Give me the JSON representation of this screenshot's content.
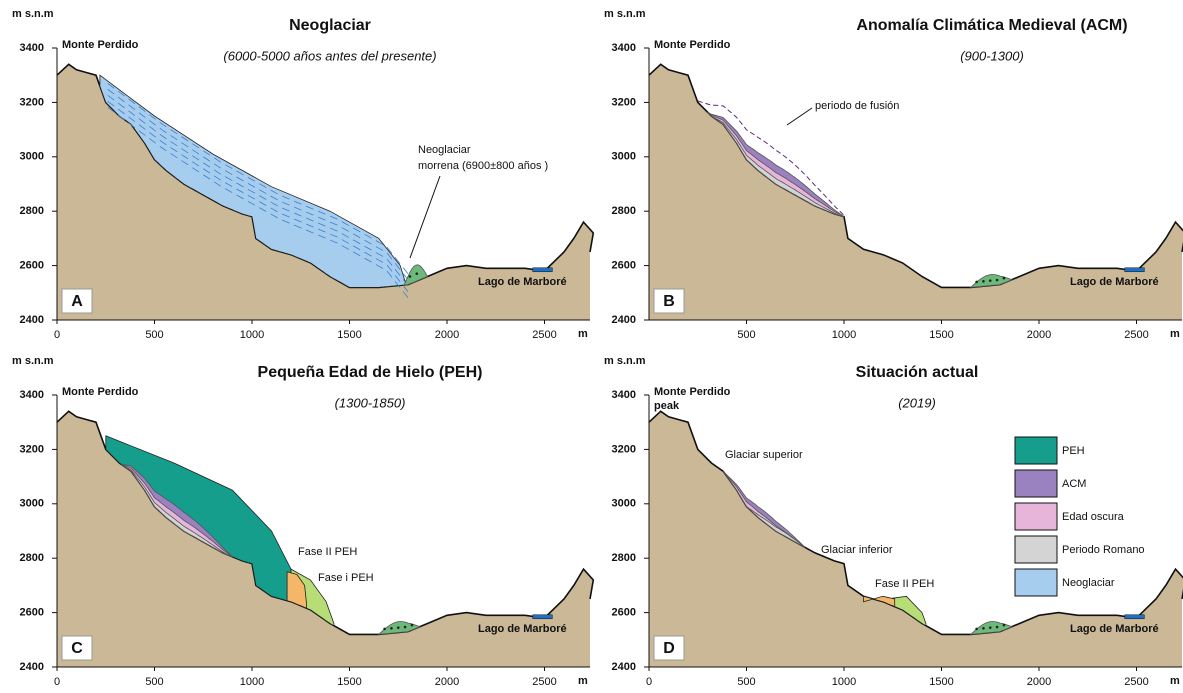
{
  "panels": [
    {
      "unit": "m s.n.m",
      "title": "Neoglaciar",
      "subtitle": "(6000-5000  años antes del presente)",
      "peak": [
        "Monte Perdido"
      ],
      "lake": "Lago de Marboré",
      "letter": "A",
      "x_unit": "m",
      "yticks": [
        2400,
        2600,
        2800,
        3000,
        3200,
        3400
      ],
      "xticks": [
        0,
        500,
        1000,
        1500,
        2000,
        2500
      ],
      "labels": [
        "Neoglaciar",
        "morrena (6900±800 años )"
      ]
    },
    {
      "unit": "m s.n.m",
      "title": "Anomalía Climática Medieval (ACM)",
      "subtitle": "(900-1300)",
      "peak": [
        "Monte Perdido"
      ],
      "lake": "Lago de Marboré",
      "letter": "B",
      "x_unit": "m",
      "yticks": [
        2400,
        2600,
        2800,
        3000,
        3200,
        3400
      ],
      "xticks": [
        500,
        1000,
        1500,
        2000,
        2500
      ],
      "labels": [
        "periodo de fusión"
      ]
    },
    {
      "unit": "m s.n.m",
      "title": "Pequeña Edad de Hielo (PEH)",
      "subtitle": "(1300-1850)",
      "peak": [
        "Monte Perdido"
      ],
      "lake": "Lago de Marboré",
      "letter": "C",
      "x_unit": "m",
      "yticks": [
        2400,
        2600,
        2800,
        3000,
        3200,
        3400
      ],
      "xticks": [
        0,
        500,
        1000,
        1500,
        2000,
        2500
      ],
      "labels": [
        "Fase II PEH",
        "Fase i PEH"
      ]
    },
    {
      "unit": "m s.n.m",
      "title": "Situación actual",
      "subtitle": "(2019)",
      "peak": [
        "Monte Perdido",
        "peak"
      ],
      "lake": "Lago de Marboré",
      "letter": "D",
      "x_unit": "m",
      "yticks": [
        2400,
        2600,
        2800,
        3000,
        3200,
        3400
      ],
      "xticks": [
        0,
        500,
        1000,
        1500,
        2000,
        2500
      ],
      "labels": [
        "Glaciar superior",
        "Glaciar inferior",
        "Fase II PEH"
      ]
    }
  ],
  "legend": [
    "PEH",
    "ACM",
    "Edad oscura",
    "Periodo Romano",
    "Neoglaciar"
  ]
}
